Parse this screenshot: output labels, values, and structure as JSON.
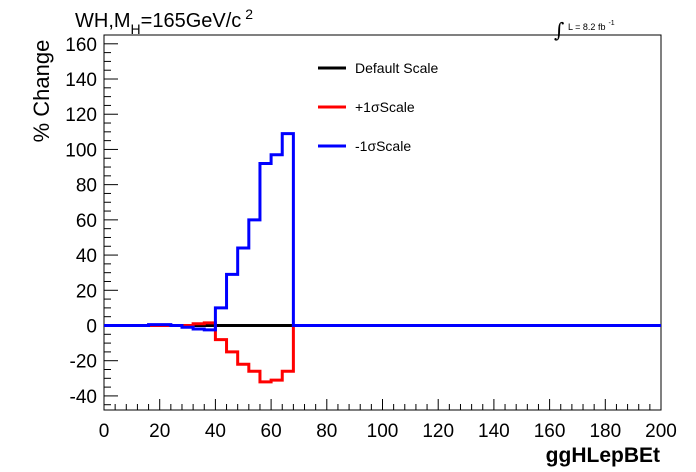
{
  "chart_data": {
    "type": "line",
    "title": {
      "main": "WH,M",
      "sub": "H",
      "rest": "=165GeV/c",
      "sup": "2"
    },
    "lumi": {
      "integral_symbol": "∫",
      "text": "L = 8.2 fb",
      "sup": "-1"
    },
    "xlabel": "ggHLepBEt",
    "ylabel": "% Change",
    "xlim": [
      0,
      200
    ],
    "ylim": [
      -48,
      165
    ],
    "x_ticks": [
      0,
      20,
      40,
      60,
      80,
      100,
      120,
      140,
      160,
      180,
      200
    ],
    "y_ticks": [
      -40,
      -20,
      0,
      20,
      40,
      60,
      80,
      100,
      120,
      140,
      160
    ],
    "grid": false,
    "legend_position": "top-center",
    "bin_edges": [
      0,
      4,
      8,
      12,
      16,
      20,
      24,
      28,
      32,
      36,
      40,
      44,
      48,
      52,
      56,
      60,
      64,
      68,
      200
    ],
    "series": [
      {
        "name": "Default Scale",
        "color": "#000000",
        "values": [
          0,
          0,
          0,
          0,
          0,
          0,
          0,
          0,
          0,
          0,
          0,
          0,
          0,
          0,
          0,
          0,
          0,
          0
        ]
      },
      {
        "name": "+1σScale",
        "color": "#ff0000",
        "values": [
          0,
          0,
          0,
          0,
          0,
          0,
          0,
          0,
          1,
          1.5,
          -8,
          -15,
          -22,
          -26,
          -32,
          -31,
          -26,
          0
        ]
      },
      {
        "name": "-1σScale",
        "color": "#0000ff",
        "values": [
          0,
          0,
          0,
          0,
          0.5,
          0.5,
          0,
          -1,
          -2,
          -2.5,
          10,
          29,
          44,
          60,
          92,
          97,
          109,
          0
        ]
      }
    ]
  }
}
